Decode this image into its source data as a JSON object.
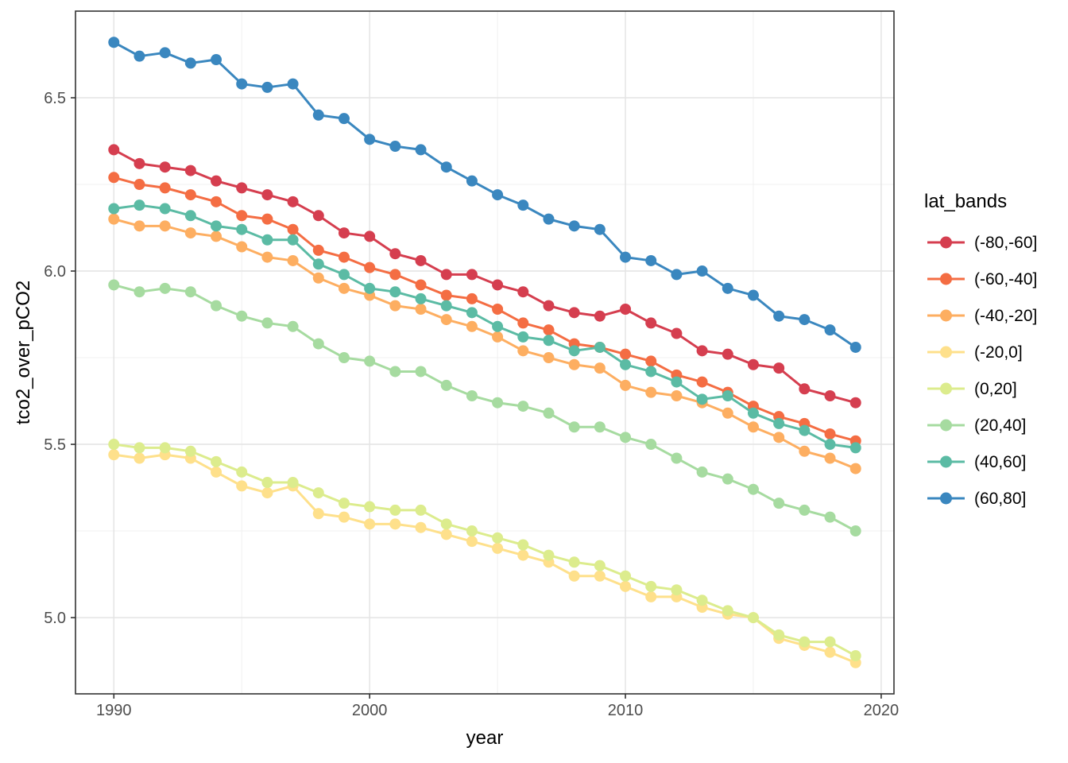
{
  "chart_data": {
    "type": "line",
    "title": "",
    "xlabel": "year",
    "ylabel": "tco2_over_pCO2",
    "legend_title": "lat_bands",
    "legend_position": "right",
    "grid": "major and minor, light gray on white, dark panel border",
    "xlim": [
      1988.5,
      2020.5
    ],
    "ylim": [
      4.78,
      6.75
    ],
    "x_ticks": [
      {
        "v": 1990,
        "label": "1990"
      },
      {
        "v": 2000,
        "label": "2000"
      },
      {
        "v": 2010,
        "label": "2010"
      },
      {
        "v": 2020,
        "label": "2020"
      }
    ],
    "y_ticks": [
      {
        "v": 5.0,
        "label": "5.0"
      },
      {
        "v": 5.5,
        "label": "5.5"
      },
      {
        "v": 6.0,
        "label": "6.0"
      },
      {
        "v": 6.5,
        "label": "6.5"
      }
    ],
    "x_minor_ticks": [
      1995,
      2005,
      2015
    ],
    "y_minor_ticks": [
      5.25,
      5.75,
      6.25
    ],
    "x": [
      1990,
      1991,
      1992,
      1993,
      1994,
      1995,
      1996,
      1997,
      1998,
      1999,
      2000,
      2001,
      2002,
      2003,
      2004,
      2005,
      2006,
      2007,
      2008,
      2009,
      2010,
      2011,
      2012,
      2013,
      2014,
      2015,
      2016,
      2017,
      2018,
      2019
    ],
    "series": [
      {
        "name": "(-80,-60]",
        "color": "#d53e4f",
        "values": [
          6.35,
          6.31,
          6.3,
          6.29,
          6.26,
          6.24,
          6.22,
          6.2,
          6.16,
          6.11,
          6.1,
          6.05,
          6.03,
          5.99,
          5.99,
          5.96,
          5.94,
          5.9,
          5.88,
          5.87,
          5.89,
          5.85,
          5.82,
          5.77,
          5.76,
          5.73,
          5.72,
          5.66,
          5.64,
          5.62
        ]
      },
      {
        "name": "(-60,-40]",
        "color": "#f46d43",
        "values": [
          6.27,
          6.25,
          6.24,
          6.22,
          6.2,
          6.16,
          6.15,
          6.12,
          6.06,
          6.04,
          6.01,
          5.99,
          5.96,
          5.93,
          5.92,
          5.89,
          5.85,
          5.83,
          5.79,
          5.78,
          5.76,
          5.74,
          5.7,
          5.68,
          5.65,
          5.61,
          5.58,
          5.56,
          5.53,
          5.51
        ]
      },
      {
        "name": "(-40,-20]",
        "color": "#fdae61",
        "values": [
          6.15,
          6.13,
          6.13,
          6.11,
          6.1,
          6.07,
          6.04,
          6.03,
          5.98,
          5.95,
          5.93,
          5.9,
          5.89,
          5.86,
          5.84,
          5.81,
          5.77,
          5.75,
          5.73,
          5.72,
          5.67,
          5.65,
          5.64,
          5.62,
          5.59,
          5.55,
          5.52,
          5.48,
          5.46,
          5.43
        ]
      },
      {
        "name": "(-20,0]",
        "color": "#fee08b",
        "values": [
          5.47,
          5.46,
          5.47,
          5.46,
          5.42,
          5.38,
          5.36,
          5.38,
          5.3,
          5.29,
          5.27,
          5.27,
          5.26,
          5.24,
          5.22,
          5.2,
          5.18,
          5.16,
          5.12,
          5.12,
          5.09,
          5.06,
          5.06,
          5.03,
          5.01,
          5.0,
          4.94,
          4.92,
          4.9,
          4.87
        ]
      },
      {
        "name": "(0,20]",
        "color": "#dcec8d",
        "values": [
          5.5,
          5.49,
          5.49,
          5.48,
          5.45,
          5.42,
          5.39,
          5.39,
          5.36,
          5.33,
          5.32,
          5.31,
          5.31,
          5.27,
          5.25,
          5.23,
          5.21,
          5.18,
          5.16,
          5.15,
          5.12,
          5.09,
          5.08,
          5.05,
          5.02,
          5.0,
          4.95,
          4.93,
          4.93,
          4.89
        ]
      },
      {
        "name": "(20,40]",
        "color": "#a6dba0",
        "values": [
          5.96,
          5.94,
          5.95,
          5.94,
          5.9,
          5.87,
          5.85,
          5.84,
          5.79,
          5.75,
          5.74,
          5.71,
          5.71,
          5.67,
          5.64,
          5.62,
          5.61,
          5.59,
          5.55,
          5.55,
          5.52,
          5.5,
          5.46,
          5.42,
          5.4,
          5.37,
          5.33,
          5.31,
          5.29,
          5.25
        ]
      },
      {
        "name": "(40,60]",
        "color": "#5bbba4",
        "values": [
          6.18,
          6.19,
          6.18,
          6.16,
          6.13,
          6.12,
          6.09,
          6.09,
          6.02,
          5.99,
          5.95,
          5.94,
          5.92,
          5.9,
          5.88,
          5.84,
          5.81,
          5.8,
          5.77,
          5.78,
          5.73,
          5.71,
          5.68,
          5.63,
          5.64,
          5.59,
          5.56,
          5.54,
          5.5,
          5.49
        ]
      },
      {
        "name": "(60,80]",
        "color": "#3a87bf",
        "values": [
          6.66,
          6.62,
          6.63,
          6.6,
          6.61,
          6.54,
          6.53,
          6.54,
          6.45,
          6.44,
          6.38,
          6.36,
          6.35,
          6.3,
          6.26,
          6.22,
          6.19,
          6.15,
          6.13,
          6.12,
          6.04,
          6.03,
          5.99,
          6.0,
          5.95,
          5.93,
          5.87,
          5.86,
          5.83,
          5.78
        ]
      }
    ],
    "style": {
      "grid_major_color": "#e4e4e4",
      "grid_minor_color": "#f0f0f0",
      "panel_border_color": "#333333",
      "tick_label_color": "#4d4d4d",
      "axis_title_color": "#000000",
      "point_radius": 7,
      "line_width": 3
    }
  }
}
